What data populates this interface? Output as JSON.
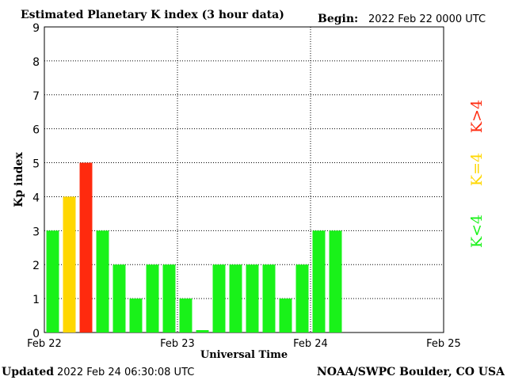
{
  "chart_data": {
    "type": "bar",
    "title": "Estimated Planetary K index (3 hour data)",
    "begin_label": "Begin:",
    "begin_value": "2022 Feb 22 0000 UTC",
    "ylabel": "Kp index",
    "xlabel": "Universal Time",
    "ylim": [
      0,
      9
    ],
    "yticks": [
      0,
      1,
      2,
      3,
      4,
      5,
      6,
      7,
      8,
      9
    ],
    "xlim_slots": [
      0,
      24
    ],
    "xticks": [
      {
        "slot": 0,
        "label": "Feb 22"
      },
      {
        "slot": 8,
        "label": "Feb 23"
      },
      {
        "slot": 16,
        "label": "Feb 24"
      },
      {
        "slot": 24,
        "label": "Feb 25"
      }
    ],
    "grid": true,
    "values": [
      3,
      4,
      5,
      3,
      2,
      1,
      2,
      2,
      1,
      0.07,
      2,
      2,
      2,
      2,
      1,
      2,
      3,
      3
    ],
    "colors": {
      "below": "#19f219",
      "equal": "#ffd700",
      "above": "#ff2a0e"
    },
    "legend": [
      {
        "label": "K<4",
        "color": "#19f219"
      },
      {
        "label": "K=4",
        "color": "#ffd700"
      },
      {
        "label": "K>4",
        "color": "#ff2a0e"
      }
    ]
  },
  "footer": {
    "updated_label": "Updated",
    "updated_value": "2022 Feb 24 06:30:08 UTC",
    "credit": "NOAA/SWPC Boulder, CO USA"
  }
}
